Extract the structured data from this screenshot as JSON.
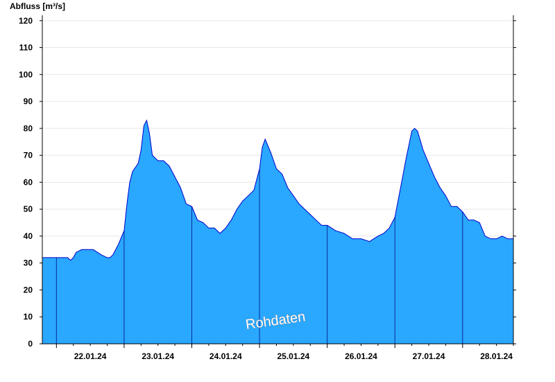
{
  "chart_data": {
    "type": "area",
    "ylabel": "Abfluss [m³/s]",
    "xlabel": "",
    "title": "",
    "ylim": [
      0,
      122
    ],
    "yticks": [
      0,
      10,
      20,
      30,
      40,
      50,
      60,
      70,
      80,
      90,
      100,
      110,
      120
    ],
    "xlim": [
      "21.01.24 19:00",
      "28.01.24 18:00"
    ],
    "x_tick_labels": [
      "22.01.24",
      "23.01.24",
      "24.01.24",
      "25.01.24",
      "26.01.24",
      "27.01.24",
      "28.01.24"
    ],
    "grid": true,
    "watermark": "Rohdaten",
    "fill_color": "#2aa7ff",
    "line_color": "#0000cc",
    "series": [
      {
        "x": [
          "21.01.24 19:00",
          "22.01.24 04:00",
          "22.01.24 05:00",
          "22.01.24 06:00",
          "22.01.24 07:00",
          "22.01.24 09:00",
          "22.01.24 11:00",
          "22.01.24 13:00",
          "22.01.24 16:00",
          "22.01.24 18:00",
          "22.01.24 19:00",
          "22.01.24 20:00",
          "22.01.24 22:00",
          "23.01.24 00:00",
          "23.01.24 01:00",
          "23.01.24 02:00",
          "23.01.24 03:00",
          "23.01.24 05:00",
          "23.01.24 06:00",
          "23.01.24 07:00",
          "23.01.24 08:00",
          "23.01.24 09:00",
          "23.01.24 10:00",
          "23.01.24 12:00",
          "23.01.24 14:00",
          "23.01.24 16:00",
          "23.01.24 18:00",
          "23.01.24 20:00",
          "23.01.24 22:00",
          "24.01.24 00:00",
          "24.01.24 02:00",
          "24.01.24 04:00",
          "24.01.24 06:00",
          "24.01.24 08:00",
          "24.01.24 10:00",
          "24.01.24 12:00",
          "24.01.24 14:00",
          "24.01.24 16:00",
          "24.01.24 18:00",
          "24.01.24 20:00",
          "24.01.24 22:00",
          "25.01.24 00:00",
          "25.01.24 01:00",
          "25.01.24 02:00",
          "25.01.24 04:00",
          "25.01.24 06:00",
          "25.01.24 08:00",
          "25.01.24 10:00",
          "25.01.24 12:00",
          "25.01.24 14:00",
          "25.01.24 16:00",
          "25.01.24 18:00",
          "25.01.24 20:00",
          "25.01.24 22:00",
          "26.01.24 00:00",
          "26.01.24 03:00",
          "26.01.24 06:00",
          "26.01.24 09:00",
          "26.01.24 12:00",
          "26.01.24 15:00",
          "26.01.24 18:00",
          "26.01.24 20:00",
          "26.01.24 22:00",
          "27.01.24 00:00",
          "27.01.24 02:00",
          "27.01.24 04:00",
          "27.01.24 06:00",
          "27.01.24 07:00",
          "27.01.24 08:00",
          "27.01.24 10:00",
          "27.01.24 12:00",
          "27.01.24 14:00",
          "27.01.24 16:00",
          "27.01.24 18:00",
          "27.01.24 20:00",
          "27.01.24 22:00",
          "28.01.24 00:00",
          "28.01.24 02:00",
          "28.01.24 04:00",
          "28.01.24 06:00",
          "28.01.24 08:00",
          "28.01.24 10:00",
          "28.01.24 12:00",
          "28.01.24 14:00",
          "28.01.24 16:00",
          "28.01.24 18:00"
        ],
        "y": [
          32,
          32,
          31,
          32,
          34,
          35,
          35,
          35,
          33,
          32,
          32,
          33,
          37,
          42,
          52,
          60,
          64,
          67,
          72,
          81,
          83,
          78,
          70,
          68,
          68,
          66,
          62,
          58,
          52,
          51,
          46,
          45,
          43,
          43,
          41,
          43,
          46,
          50,
          53,
          55,
          57,
          65,
          73,
          76,
          71,
          65,
          63,
          58,
          55,
          52,
          50,
          48,
          46,
          44,
          44,
          42,
          41,
          39,
          39,
          38,
          40,
          41,
          43,
          47,
          58,
          69,
          79,
          80,
          79,
          72,
          67,
          62,
          58,
          55,
          51,
          51,
          49,
          46,
          46,
          45,
          40,
          39,
          39,
          40,
          39,
          39
        ]
      }
    ]
  }
}
